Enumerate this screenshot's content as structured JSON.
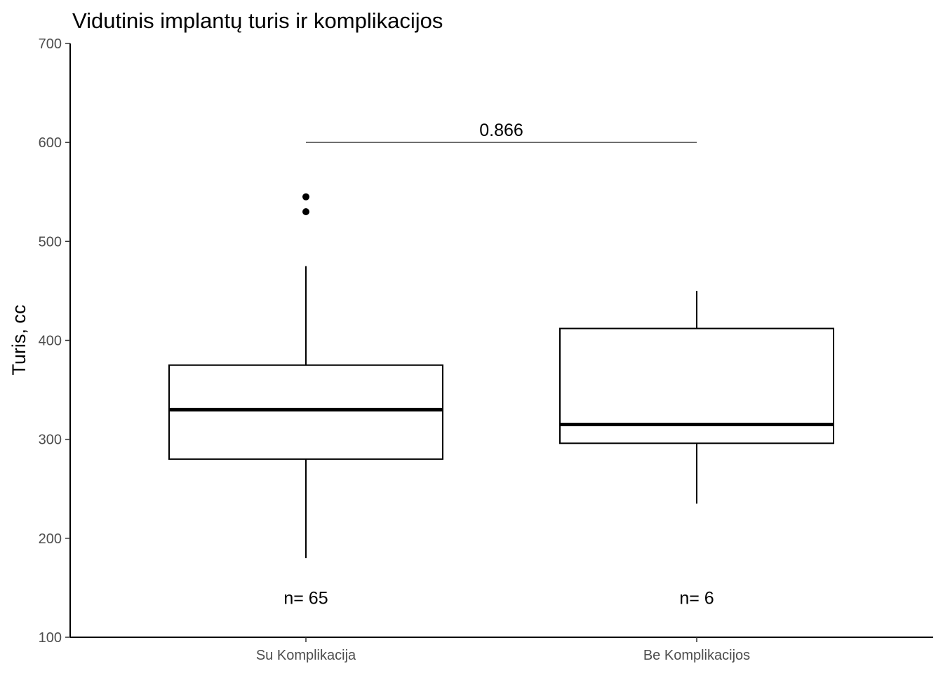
{
  "chart_data": {
    "type": "box",
    "title": "Vidutinis implantų turis ir komplikacijos",
    "xlabel": "",
    "ylabel": "Turis, cc",
    "ylim": [
      100,
      700
    ],
    "yticks": [
      100,
      200,
      300,
      400,
      500,
      600,
      700
    ],
    "grid": false,
    "categories": [
      "Su Komplikacija",
      "Be Komplikacijos"
    ],
    "boxes": [
      {
        "category": "Su Komplikacija",
        "whisker_low": 180,
        "q1": 280,
        "median": 330,
        "q3": 375,
        "whisker_high": 475,
        "outliers": [
          530,
          545
        ],
        "n_label": "n= 65",
        "n_label_y": 140
      },
      {
        "category": "Be Komplikacijos",
        "whisker_low": 235,
        "q1": 296,
        "median": 315,
        "q3": 412,
        "whisker_high": 450,
        "outliers": [],
        "n_label": "n= 6",
        "n_label_y": 140
      }
    ],
    "comparison": {
      "label": "0.866",
      "y": 600,
      "from": "Su Komplikacija",
      "to": "Be Komplikacijos"
    }
  }
}
